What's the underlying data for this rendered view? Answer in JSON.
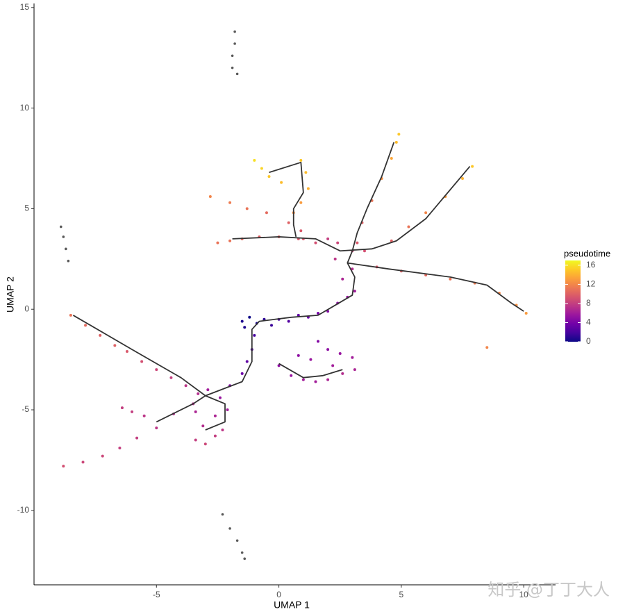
{
  "chart_data": {
    "type": "scatter",
    "xlabel": "UMAP 1",
    "ylabel": "UMAP 2",
    "xlim": [
      -10,
      11.3
    ],
    "ylim": [
      -13.7,
      15.2
    ],
    "xticks": [
      -5,
      0,
      5,
      10
    ],
    "yticks": [
      -10,
      -5,
      0,
      5,
      10,
      15
    ],
    "grid": false,
    "points": {
      "x": [
        -8.5,
        -7.9,
        -7.3,
        -6.7,
        -6.2,
        -5.6,
        -5.0,
        -4.4,
        -3.8,
        -3.3,
        -8.8,
        -8.0,
        -7.2,
        -6.5,
        -5.8,
        -5.0,
        -4.3,
        -3.5,
        -6.4,
        -6.0,
        -5.5,
        -3.4,
        -3.0,
        -2.6,
        -2.3,
        -3.1,
        -2.6,
        -2.1,
        -3.4,
        -2.4,
        -2.9,
        -2.0,
        -1.5,
        -1.3,
        -1.1,
        -1.0,
        -1.5,
        -1.2,
        -0.9,
        -0.6,
        -1.4,
        -0.3,
        0,
        0.4,
        0.8,
        1.2,
        1.6,
        2.0,
        2.4,
        2.8,
        3.1,
        2.6,
        3.0,
        2.3,
        0,
        0.5,
        1,
        1.5,
        2,
        2.6,
        3.1,
        3.0,
        2.5,
        2.0,
        1.6,
        1.3,
        2.2,
        0.8,
        2.0,
        2.4,
        3.0,
        3.5,
        1.5,
        1.0,
        -2.5,
        -2,
        -1.5,
        -0.8,
        0,
        0.8,
        -2.8,
        -2,
        -1.3,
        -0.5,
        0.4,
        0.9,
        -1.0,
        -0.7,
        -0.4,
        0.1,
        0.9,
        1.1,
        1.2,
        0.9,
        0.6,
        3.2,
        3.4,
        3.8,
        4.2,
        4.6,
        4.8,
        4.9,
        4.6,
        5.3,
        6.0,
        6.8,
        7.5,
        7.9,
        4,
        5,
        6,
        7,
        8,
        9,
        9.7,
        10.1,
        8.5
      ],
      "y": [
        -0.3,
        -0.8,
        -1.3,
        -1.8,
        -2.1,
        -2.6,
        -3.0,
        -3.4,
        -3.8,
        -4.2,
        -7.8,
        -7.6,
        -7.3,
        -6.9,
        -6.4,
        -5.9,
        -5.2,
        -4.7,
        -4.9,
        -5.1,
        -5.3,
        -6.5,
        -6.7,
        -6.3,
        -6.0,
        -5.8,
        -5.3,
        -5.0,
        -5.1,
        -4.4,
        -4.0,
        -3.8,
        -3.2,
        -2.6,
        -2.0,
        -1.3,
        -0.6,
        -0.4,
        -0.7,
        -0.5,
        -0.9,
        -0.8,
        -0.5,
        -0.6,
        -0.3,
        -0.4,
        -0.2,
        -0.1,
        0.3,
        0.6,
        0.9,
        1.5,
        2.0,
        2.5,
        -2.8,
        -3.3,
        -3.5,
        -3.6,
        -3.5,
        -3.2,
        -3.0,
        -2.4,
        -2.2,
        -2.0,
        -1.6,
        -2.5,
        -2.8,
        -2.3,
        3.5,
        3.3,
        2.9,
        2.9,
        3.3,
        3.5,
        3.3,
        3.4,
        3.5,
        3.6,
        3.6,
        3.5,
        5.6,
        5.3,
        5.0,
        4.8,
        4.3,
        3.9,
        7.4,
        7.0,
        6.6,
        6.3,
        7.4,
        6.8,
        6.0,
        5.3,
        4.8,
        3.3,
        4.3,
        5.4,
        6.5,
        7.5,
        8.3,
        8.7,
        3.4,
        4.1,
        4.8,
        5.6,
        6.5,
        7.1,
        2.1,
        1.9,
        1.7,
        1.5,
        1.3,
        0.8,
        0.2,
        -0.2,
        -1.9
      ],
      "pseudotime": [
        11,
        10.5,
        10,
        10,
        9.5,
        9,
        8.5,
        8,
        7.5,
        7,
        9,
        8.5,
        8.5,
        8,
        8,
        7.5,
        7,
        7,
        8,
        8,
        7.5,
        8,
        8.5,
        8,
        7.5,
        7,
        6.5,
        6,
        6.5,
        5.5,
        6,
        4.5,
        3.5,
        3,
        2.5,
        2,
        0.5,
        0,
        0.5,
        1,
        0.5,
        1.5,
        2,
        2.5,
        3,
        3.5,
        4,
        4.5,
        5,
        5.5,
        6,
        6.5,
        7,
        7.5,
        5,
        5.5,
        6,
        6,
        6.5,
        7,
        6.5,
        6,
        5.5,
        5,
        4.5,
        5.5,
        6,
        5,
        8,
        8.5,
        8.5,
        9,
        9,
        9.5,
        11,
        11,
        10.5,
        10,
        10,
        9.5,
        12,
        11.5,
        11,
        10.5,
        10,
        9.5,
        16,
        15.5,
        15,
        14.5,
        15,
        14.5,
        14,
        13,
        12.5,
        9.5,
        10,
        11,
        12.5,
        13.5,
        14.5,
        15,
        10,
        11,
        12,
        13,
        14,
        15,
        9.5,
        10,
        10.5,
        11,
        11.5,
        12,
        12.5,
        13,
        12
      ]
    },
    "na_points": {
      "color": "#595959",
      "x": [
        -1.8,
        -1.8,
        -1.9,
        -1.9,
        -1.7,
        -8.9,
        -8.8,
        -8.7,
        -8.6,
        -2.3,
        -2.0,
        -1.7,
        -1.5,
        -1.4
      ],
      "y": [
        13.8,
        13.2,
        12.6,
        12.0,
        11.7,
        4.1,
        3.6,
        3.0,
        2.4,
        -10.2,
        -10.9,
        -11.5,
        -12.1,
        -12.4
      ]
    },
    "trajectory": {
      "color": "#333333",
      "segments": [
        {
          "x": [
            -8.4,
            -6,
            -4,
            -3
          ],
          "y": [
            -0.3,
            -2.0,
            -3.4,
            -4.3
          ]
        },
        {
          "x": [
            -5,
            -3.5,
            -3
          ],
          "y": [
            -5.6,
            -4.7,
            -4.3
          ]
        },
        {
          "x": [
            -3,
            -2.2,
            -2.2,
            -3
          ],
          "y": [
            -4.3,
            -4.7,
            -5.6,
            -6.0
          ]
        },
        {
          "x": [
            -3,
            -1.5,
            -1.1,
            -1.1,
            -0.8,
            0.5,
            1.6,
            2.3,
            3.0,
            3.1,
            2.8,
            3.0
          ],
          "y": [
            -4.3,
            -3.6,
            -2.6,
            -1.0,
            -0.6,
            -0.4,
            -0.3,
            0.2,
            0.7,
            1.6,
            2.3,
            2.9
          ]
        },
        {
          "x": [
            0,
            1,
            1.8,
            2.6
          ],
          "y": [
            -2.7,
            -3.4,
            -3.3,
            -3.0
          ]
        },
        {
          "x": [
            -1.9,
            0,
            1.5,
            2.5,
            3.8,
            4.8,
            6,
            7.8
          ],
          "y": [
            3.5,
            3.6,
            3.5,
            2.9,
            3.0,
            3.4,
            4.5,
            7.1
          ]
        },
        {
          "x": [
            3.0,
            3.2,
            3.6,
            4.2,
            4.7
          ],
          "y": [
            2.9,
            3.8,
            5,
            6.6,
            8.3
          ]
        },
        {
          "x": [
            2.8,
            4.5,
            7,
            8.5,
            9.5,
            10.0
          ],
          "y": [
            2.3,
            2.0,
            1.6,
            1.2,
            0.3,
            -0.1
          ]
        },
        {
          "x": [
            -0.4,
            0.9,
            1.0,
            0.6,
            0.6,
            0.7
          ],
          "y": [
            6.8,
            7.3,
            5.8,
            5.0,
            4.2,
            3.6
          ]
        }
      ]
    },
    "colorbar": {
      "title": "pseudotime",
      "colormap": "plasma",
      "lim": [
        0,
        17
      ],
      "ticks": [
        0,
        4,
        8,
        12,
        16
      ]
    },
    "watermark": "知乎 @丁丁大人"
  }
}
